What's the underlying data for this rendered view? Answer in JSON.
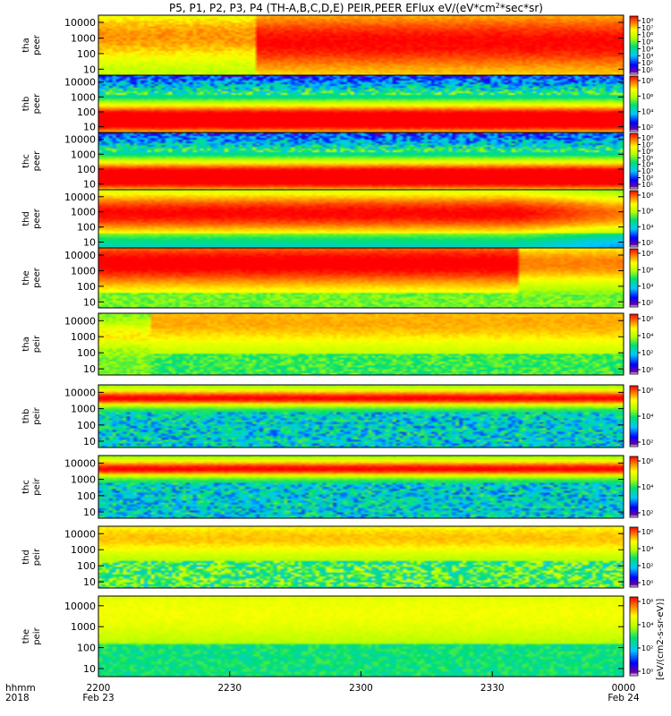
{
  "chart_data": {
    "type": "heatmap",
    "title": "P5, P1, P2, P3, P4 (TH-A,B,C,D,E) PEIR,PEER EFlux eV/(eV*cm",
    "title_sup": "2",
    "title_end": "*sec*sr)",
    "colorbar_label": "[eV/(cm2-s-sr-eV)]",
    "x_axis": {
      "label_row1": "hhmm",
      "label_row2": "2018",
      "ticks": [
        {
          "value": "2200",
          "date": "Feb 23"
        },
        {
          "value": "2230",
          "date": ""
        },
        {
          "value": "2300",
          "date": ""
        },
        {
          "value": "2330",
          "date": ""
        },
        {
          "value": "0000",
          "date": "Feb 24"
        }
      ]
    },
    "panels": [
      {
        "probe": "tha",
        "species": "peer",
        "yticks": [
          "10000",
          "1000",
          "100",
          "10"
        ],
        "cb_ticks": [
          "10⁸",
          "10⁷",
          "10⁶",
          "10⁵",
          "10⁴",
          "10³",
          "10²",
          "10¹"
        ],
        "profile": "e_a"
      },
      {
        "probe": "thb",
        "species": "peer",
        "yticks": [
          "10000",
          "1000",
          "100",
          "10"
        ],
        "cb_ticks": [
          "10⁸",
          "10⁶",
          "10⁴",
          "10²"
        ],
        "profile": "e_hot"
      },
      {
        "probe": "thc",
        "species": "peer",
        "yticks": [
          "10000",
          "1000",
          "100",
          "10"
        ],
        "cb_ticks": [
          "10⁸",
          "10⁷",
          "10⁶",
          "10⁵",
          "10⁴",
          "10³",
          "10²",
          "10¹"
        ],
        "profile": "e_hot"
      },
      {
        "probe": "thd",
        "species": "peer",
        "yticks": [
          "10000",
          "1000",
          "100",
          "10"
        ],
        "cb_ticks": [
          "10⁸",
          "10⁶",
          "10⁴",
          "10²"
        ],
        "profile": "e_mid"
      },
      {
        "probe": "the",
        "species": "peer",
        "yticks": [
          "10000",
          "1000",
          "100",
          "10"
        ],
        "cb_ticks": [
          "10⁸",
          "10⁶",
          "10⁴",
          "10²"
        ],
        "profile": "e_e"
      },
      {
        "probe": "tha",
        "species": "peir",
        "yticks": [
          "10000",
          "1000",
          "100",
          "10"
        ],
        "cb_ticks": [
          "10⁶",
          "10⁴",
          "10²",
          "10⁰"
        ],
        "profile": "i_a"
      },
      {
        "probe": "thb",
        "species": "peir",
        "yticks": [
          "10000",
          "1000",
          "100",
          "10"
        ],
        "cb_ticks": [
          "10⁶",
          "10⁴",
          "10²"
        ],
        "profile": "i_noisy"
      },
      {
        "probe": "thc",
        "species": "peir",
        "yticks": [
          "10000",
          "1000",
          "100",
          "10"
        ],
        "cb_ticks": [
          "10⁶",
          "10⁴",
          "10²"
        ],
        "profile": "i_noisy"
      },
      {
        "probe": "thd",
        "species": "peir",
        "yticks": [
          "10000",
          "1000",
          "100",
          "10"
        ],
        "cb_ticks": [
          "10⁶",
          "10⁴",
          "10²",
          "10⁰"
        ],
        "profile": "i_d"
      },
      {
        "probe": "the",
        "species": "peir",
        "yticks": [
          "10000",
          "1000",
          "100",
          "10"
        ],
        "cb_ticks": [
          "10⁶",
          "10⁴",
          "10²",
          "10⁰"
        ],
        "profile": "i_e"
      }
    ]
  }
}
